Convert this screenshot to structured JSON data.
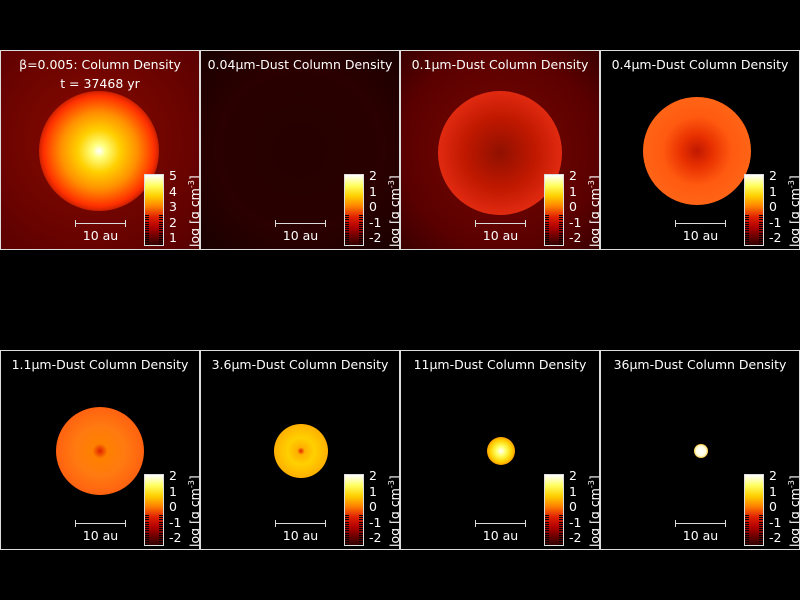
{
  "panels": [
    {
      "title": "β=0.005: Column Density",
      "time": "t = 37468 yr",
      "ticks": [
        "5",
        "4",
        "3",
        "2",
        "1"
      ],
      "scale": "10 au",
      "unit": "log [g cm",
      "unit_exp": "-3",
      "unit_close": "]"
    },
    {
      "title": "0.04μm-Dust Column Density",
      "ticks": [
        "2",
        "1",
        "0",
        "-1",
        "-2"
      ],
      "scale": "10 au",
      "unit": "log [g cm",
      "unit_exp": "-3",
      "unit_close": "]"
    },
    {
      "title": "0.1μm-Dust Column Density",
      "ticks": [
        "2",
        "1",
        "0",
        "-1",
        "-2"
      ],
      "scale": "10 au",
      "unit": "log [g cm",
      "unit_exp": "-3",
      "unit_close": "]"
    },
    {
      "title": "0.4μm-Dust Column Density",
      "ticks": [
        "2",
        "1",
        "0",
        "-1",
        "-2"
      ],
      "scale": "10 au",
      "unit": "log [g cm",
      "unit_exp": "-3",
      "unit_close": "]"
    },
    {
      "title": "1.1μm-Dust Column Density",
      "ticks": [
        "2",
        "1",
        "0",
        "-1",
        "-2"
      ],
      "scale": "10 au",
      "unit": "log [g cm",
      "unit_exp": "-3",
      "unit_close": "]"
    },
    {
      "title": "3.6μm-Dust Column Density",
      "ticks": [
        "2",
        "1",
        "0",
        "-1",
        "-2"
      ],
      "scale": "10 au",
      "unit": "log [g cm",
      "unit_exp": "-3",
      "unit_close": "]"
    },
    {
      "title": "11μm-Dust Column Density",
      "ticks": [
        "2",
        "1",
        "0",
        "-1",
        "-2"
      ],
      "scale": "10 au",
      "unit": "log [g cm",
      "unit_exp": "-3",
      "unit_close": "]"
    },
    {
      "title": "36μm-Dust Column Density",
      "ticks": [
        "2",
        "1",
        "0",
        "-1",
        "-2"
      ],
      "scale": "10 au",
      "unit": "log [g cm",
      "unit_exp": "-3",
      "unit_close": "]"
    }
  ],
  "colors": {
    "background": "#000000",
    "border": "#dddddd",
    "colormap": [
      "#300000",
      "#600000",
      "#b00000",
      "#e02000",
      "#ff8000",
      "#ffd000",
      "#ffff60",
      "#ffffff"
    ]
  }
}
